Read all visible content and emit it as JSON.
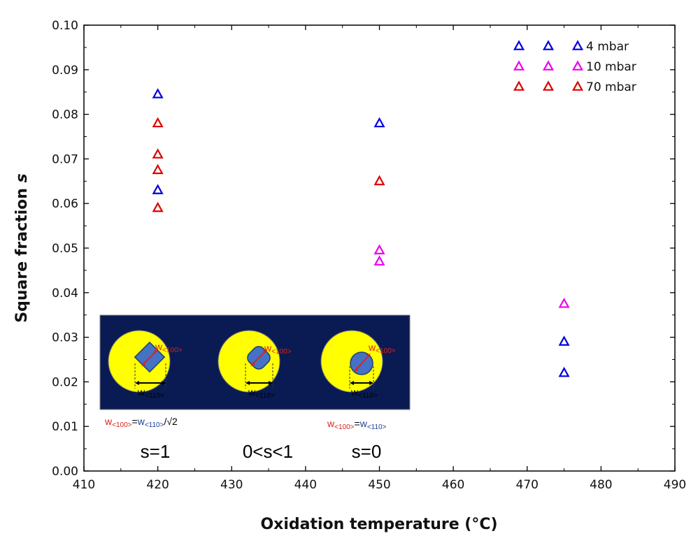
{
  "chart_data": {
    "type": "scatter",
    "xlabel": "Oxidation temperature (°C)",
    "ylabel_main": "Square fraction ",
    "ylabel_symbol": "s",
    "xlim": [
      410,
      490
    ],
    "ylim": [
      0.0,
      0.1
    ],
    "x_ticks": [
      "410",
      "420",
      "430",
      "440",
      "450",
      "460",
      "470",
      "480",
      "490"
    ],
    "y_ticks": [
      "0.00",
      "0.01",
      "0.02",
      "0.03",
      "0.04",
      "0.05",
      "0.06",
      "0.07",
      "0.08",
      "0.09",
      "0.10"
    ],
    "grid": false,
    "legend_position": "top-right",
    "series": [
      {
        "name": "4 mbar",
        "color": "#0000dd",
        "marker": "triangle-open",
        "points": [
          [
            420,
            0.0845
          ],
          [
            420,
            0.063
          ],
          [
            450,
            0.078
          ],
          [
            475,
            0.029
          ],
          [
            475,
            0.022
          ]
        ]
      },
      {
        "name": "10 mbar",
        "color": "#ee00ee",
        "marker": "triangle-open",
        "points": [
          [
            450,
            0.0495
          ],
          [
            450,
            0.047
          ],
          [
            475,
            0.0375
          ]
        ]
      },
      {
        "name": "70 mbar",
        "color": "#dd0000",
        "marker": "triangle-open",
        "points": [
          [
            420,
            0.078
          ],
          [
            420,
            0.071
          ],
          [
            420,
            0.0675
          ],
          [
            420,
            0.059
          ],
          [
            450,
            0.065
          ]
        ]
      }
    ]
  },
  "inset": {
    "w100": "w",
    "w100_sub": "<100>",
    "w110": "w",
    "w110_sub": "<110>",
    "formula_left": {
      "w1": "w",
      "sub1": "<100>",
      "eq": "=",
      "w2": "w",
      "sub2": "<110>",
      "tail": "/√2"
    },
    "formula_right": {
      "w1": "w",
      "sub1": "<100>",
      "eq": "=",
      "w2": "w",
      "sub2": "<110>"
    }
  },
  "annotations": {
    "s1": "s=1",
    "s_mid": "0<s<1",
    "s0": "s=0"
  }
}
